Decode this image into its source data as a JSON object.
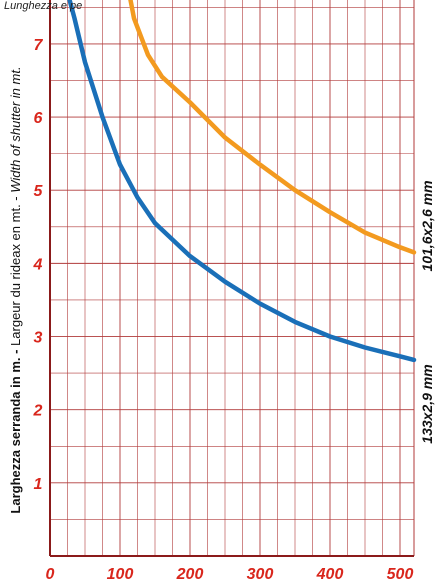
{
  "chart_data": {
    "type": "line",
    "title": "",
    "top_note": "Lunghezza e pe",
    "ylabel": {
      "part1": "Larghezza serranda in m. - ",
      "part2": "Largeur du rideax en mt. - ",
      "part3": "Width of shutter  in mt."
    },
    "xlabel": "",
    "xlim": [
      0,
      520
    ],
    "ylim": [
      0,
      7.6
    ],
    "x_ticks": [
      "0",
      "100",
      "200",
      "300",
      "400",
      "500"
    ],
    "y_ticks": [
      "1",
      "2",
      "3",
      "4",
      "5",
      "6",
      "7"
    ],
    "grid": true,
    "series": [
      {
        "name": "101,6x2,6 mm",
        "color": "#f39a1f",
        "points": [
          [
            115,
            7.6
          ],
          [
            120,
            7.35
          ],
          [
            140,
            6.85
          ],
          [
            160,
            6.55
          ],
          [
            200,
            6.2
          ],
          [
            250,
            5.72
          ],
          [
            300,
            5.35
          ],
          [
            350,
            5.0
          ],
          [
            400,
            4.7
          ],
          [
            450,
            4.42
          ],
          [
            500,
            4.22
          ],
          [
            520,
            4.15
          ]
        ]
      },
      {
        "name": "133x2,9 mm",
        "color": "#1a6fb8",
        "points": [
          [
            28,
            7.6
          ],
          [
            35,
            7.35
          ],
          [
            50,
            6.75
          ],
          [
            75,
            6.0
          ],
          [
            100,
            5.35
          ],
          [
            125,
            4.9
          ],
          [
            150,
            4.55
          ],
          [
            200,
            4.1
          ],
          [
            250,
            3.75
          ],
          [
            300,
            3.45
          ],
          [
            350,
            3.2
          ],
          [
            400,
            3.0
          ],
          [
            450,
            2.85
          ],
          [
            500,
            2.73
          ],
          [
            520,
            2.68
          ]
        ]
      }
    ]
  }
}
